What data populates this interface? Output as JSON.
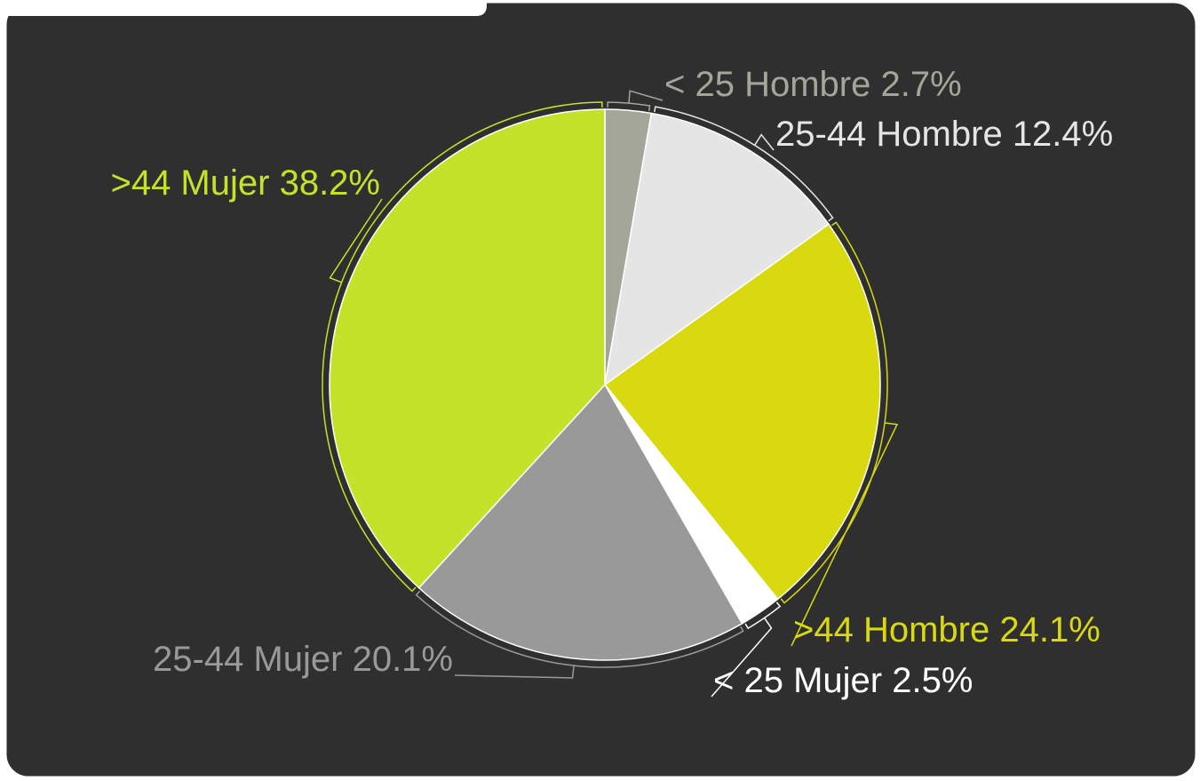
{
  "chart_data": {
    "type": "pie",
    "categories": [
      "< 25 Hombre",
      "25-44 Hombre",
      ">44 Hombre",
      "< 25 Mujer",
      "25-44 Mujer",
      ">44 Mujer"
    ],
    "values": [
      2.7,
      12.4,
      24.1,
      2.5,
      20.1,
      38.2
    ],
    "value_labels": [
      "2.7%",
      "12.4%",
      "24.1%",
      "2.5%",
      "20.1%",
      "38.2%"
    ],
    "colors": [
      "#a3a699",
      "#e5e5e5",
      "#d9d90f",
      "#ffffff",
      "#999999",
      "#c5e22b"
    ]
  }
}
